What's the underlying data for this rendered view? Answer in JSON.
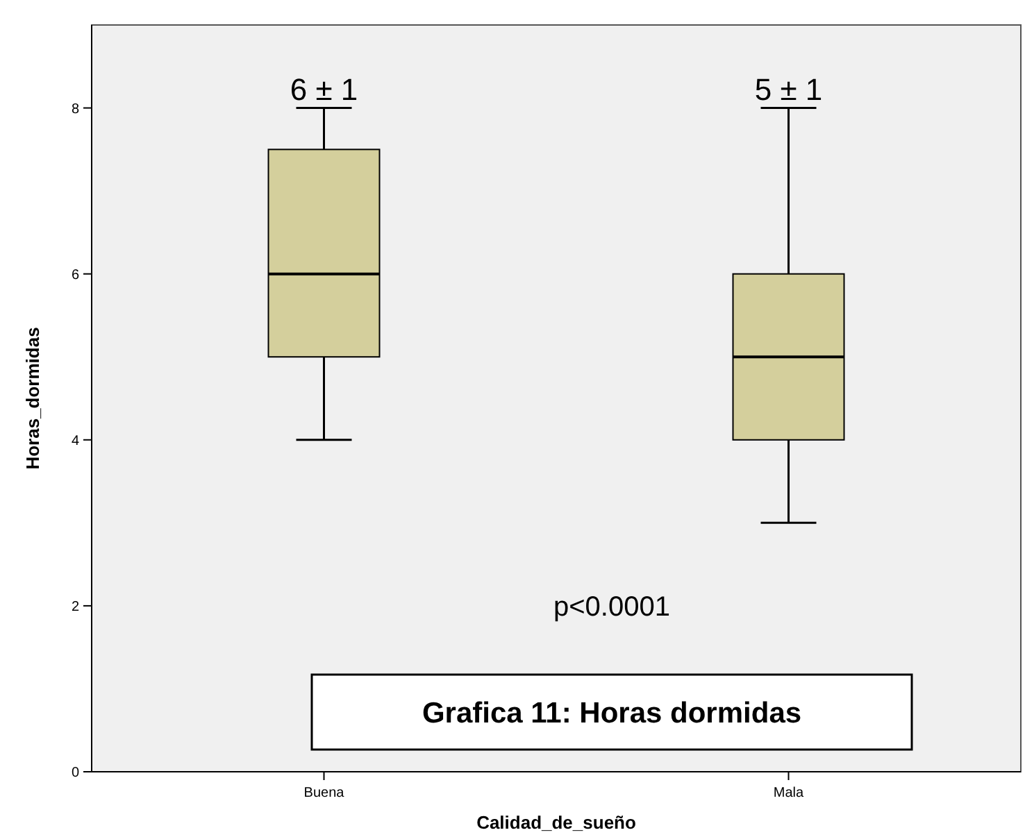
{
  "chart_data": {
    "type": "box",
    "title": "Grafica 11: Horas dormidas",
    "xlabel": "Calidad_de_sueño",
    "ylabel": "Horas_dormidas",
    "categories": [
      "Buena",
      "Mala"
    ],
    "boxes": [
      {
        "low": 4,
        "q1": 5,
        "median": 6,
        "q3": 7.5,
        "high": 8
      },
      {
        "low": 3,
        "q1": 4,
        "median": 5,
        "q3": 6,
        "high": 8
      }
    ],
    "color": "#d4cf9c",
    "ylim": [
      0,
      9
    ],
    "yticks": [
      0,
      2,
      4,
      6,
      8
    ],
    "grid": false,
    "annotations": [
      {
        "text": "6 ± 1",
        "x": "Buena",
        "y": 8
      },
      {
        "text": "5 ± 1",
        "x": "Mala",
        "y": 8
      },
      "p<0.0001"
    ]
  }
}
